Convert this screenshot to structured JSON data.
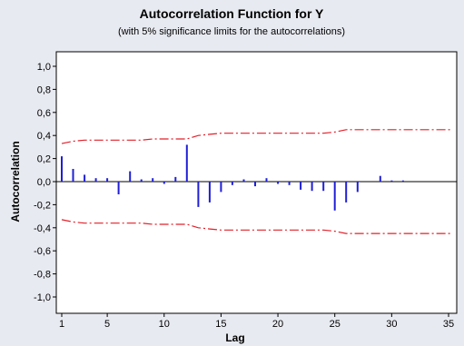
{
  "chart_data": {
    "type": "bar",
    "title": "Autocorrelation Function for Y",
    "subtitle": "(with 5% significance limits for the autocorrelations)",
    "xlabel": "Lag",
    "ylabel": "Autocorrelation",
    "xlim": [
      1,
      35
    ],
    "ylim": [
      -1.0,
      1.0
    ],
    "x_ticks": [
      1,
      5,
      10,
      15,
      20,
      25,
      30,
      35
    ],
    "y_ticks": [
      1.0,
      0.8,
      0.6,
      0.4,
      0.2,
      0.0,
      -0.2,
      -0.4,
      -0.6,
      -0.8,
      -1.0
    ],
    "y_tick_labels": [
      "1,0",
      "0,8",
      "0,6",
      "0,4",
      "0,2",
      "0,0",
      "-0,2",
      "-0,4",
      "-0,6",
      "-0,8",
      "-1,0"
    ],
    "x_tick_labels": [
      "1",
      "5",
      "10",
      "15",
      "20",
      "25",
      "30",
      "35"
    ],
    "grid": false,
    "colors": {
      "bar": "#1f1fd6",
      "limit": "#e0202a",
      "plot_bg": "#ffffff",
      "frame_bg": "#e8eaf1",
      "zero_line": "#000000"
    },
    "lags": [
      1,
      2,
      3,
      4,
      5,
      6,
      7,
      8,
      9,
      10,
      11,
      12,
      13,
      14,
      15,
      16,
      17,
      18,
      19,
      20,
      21,
      22,
      23,
      24,
      25,
      26,
      27,
      28,
      29,
      30,
      31
    ],
    "acf": [
      0.22,
      0.11,
      0.06,
      0.03,
      0.03,
      -0.11,
      0.09,
      0.02,
      0.03,
      -0.02,
      0.04,
      0.32,
      -0.22,
      -0.18,
      -0.09,
      -0.03,
      0.02,
      -0.04,
      0.03,
      -0.02,
      -0.03,
      -0.07,
      -0.08,
      -0.08,
      -0.25,
      -0.18,
      -0.09,
      0.0,
      0.05,
      0.01,
      0.01
    ],
    "upper_limit": [
      0.33,
      0.35,
      0.36,
      0.36,
      0.36,
      0.36,
      0.36,
      0.36,
      0.37,
      0.37,
      0.37,
      0.37,
      0.4,
      0.41,
      0.42,
      0.42,
      0.42,
      0.42,
      0.42,
      0.42,
      0.42,
      0.42,
      0.42,
      0.42,
      0.43,
      0.45,
      0.45,
      0.45,
      0.45,
      0.45,
      0.45,
      0.45,
      0.45,
      0.45,
      0.45
    ],
    "lower_limit": [
      -0.33,
      -0.35,
      -0.36,
      -0.36,
      -0.36,
      -0.36,
      -0.36,
      -0.36,
      -0.37,
      -0.37,
      -0.37,
      -0.37,
      -0.4,
      -0.41,
      -0.42,
      -0.42,
      -0.42,
      -0.42,
      -0.42,
      -0.42,
      -0.42,
      -0.42,
      -0.42,
      -0.42,
      -0.43,
      -0.45,
      -0.45,
      -0.45,
      -0.45,
      -0.45,
      -0.45,
      -0.45,
      -0.45,
      -0.45,
      -0.45
    ]
  }
}
